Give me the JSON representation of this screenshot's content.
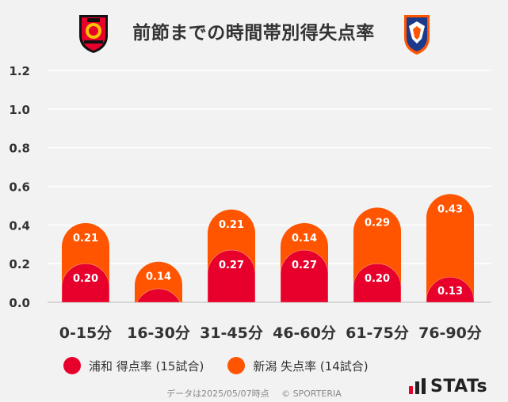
{
  "title": "前節までの時間帯別得失点率",
  "teams": {
    "home": {
      "icon": "urawa-reds-emblem-icon",
      "color": "#e8002d"
    },
    "away": {
      "icon": "albirex-niigata-emblem-icon",
      "color": "#ff5500"
    }
  },
  "chart_data": {
    "type": "bar",
    "stacked": true,
    "categories": [
      "0-15分",
      "16-30分",
      "31-45分",
      "46-60分",
      "61-75分",
      "76-90分"
    ],
    "series": [
      {
        "name": "浦和 得点率 (15試合)",
        "color": "#e8002d",
        "values": [
          0.2,
          0.07,
          0.27,
          0.27,
          0.2,
          0.13
        ],
        "labels": [
          "0.20",
          "",
          "0.27",
          "0.27",
          "0.20",
          "0.13"
        ]
      },
      {
        "name": "新潟 失点率 (14試合)",
        "color": "#ff5500",
        "values": [
          0.21,
          0.14,
          0.21,
          0.14,
          0.29,
          0.43
        ],
        "labels": [
          "0.21",
          "0.14",
          "0.21",
          "0.14",
          "0.29",
          "0.43"
        ]
      }
    ],
    "yticks": [
      "0.0",
      "0.2",
      "0.4",
      "0.6",
      "0.8",
      "1.0",
      "1.2"
    ],
    "ylim": [
      0,
      1.2
    ],
    "grid": true,
    "legend_position": "bottom"
  },
  "footer": {
    "date": "データは2025/05/07時点",
    "copyright": "© SPORTERIA"
  },
  "brand": {
    "text": "STATs",
    "icon": "stats-bars-icon"
  }
}
